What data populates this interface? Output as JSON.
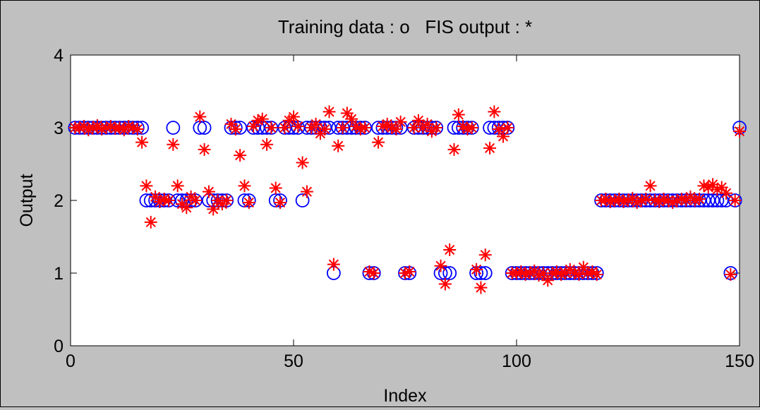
{
  "chart_data": {
    "type": "scatter",
    "title": "Training data : o   FIS output : *",
    "xlabel": "Index",
    "ylabel": "Output",
    "xlim": [
      0,
      150
    ],
    "ylim": [
      0,
      4
    ],
    "xticks": [
      "0",
      "50",
      "100",
      "150"
    ],
    "yticks": [
      "0",
      "1",
      "2",
      "3",
      "4"
    ],
    "grid": false,
    "colors": {
      "training": "#0000ff",
      "fis": "#ff0000",
      "background": "#c0c0c0",
      "plot": "#ffffff"
    },
    "series": [
      {
        "marker": "o",
        "points": [
          [
            1,
            3
          ],
          [
            2,
            3
          ],
          [
            3,
            3
          ],
          [
            4,
            3
          ],
          [
            5,
            3
          ],
          [
            6,
            3
          ],
          [
            7,
            3
          ],
          [
            8,
            3
          ],
          [
            9,
            3
          ],
          [
            10,
            3
          ],
          [
            11,
            3
          ],
          [
            12,
            3
          ],
          [
            13,
            3
          ],
          [
            14,
            3
          ],
          [
            15,
            3
          ],
          [
            16,
            3
          ],
          [
            17,
            2
          ],
          [
            18,
            2
          ],
          [
            19,
            2
          ],
          [
            20,
            2
          ],
          [
            21,
            2
          ],
          [
            22,
            2
          ],
          [
            23,
            3
          ],
          [
            24,
            2
          ],
          [
            25,
            2
          ],
          [
            26,
            2
          ],
          [
            27,
            2
          ],
          [
            28,
            2
          ],
          [
            29,
            3
          ],
          [
            30,
            3
          ],
          [
            31,
            2
          ],
          [
            32,
            2
          ],
          [
            33,
            2
          ],
          [
            34,
            2
          ],
          [
            35,
            2
          ],
          [
            36,
            3
          ],
          [
            37,
            3
          ],
          [
            38,
            3
          ],
          [
            39,
            2
          ],
          [
            40,
            2
          ],
          [
            41,
            3
          ],
          [
            42,
            3
          ],
          [
            43,
            3
          ],
          [
            44,
            3
          ],
          [
            45,
            3
          ],
          [
            46,
            2
          ],
          [
            47,
            2
          ],
          [
            48,
            3
          ],
          [
            49,
            3
          ],
          [
            50,
            3
          ],
          [
            51,
            3
          ],
          [
            52,
            2
          ],
          [
            53,
            3
          ],
          [
            54,
            3
          ],
          [
            55,
            3
          ],
          [
            56,
            3
          ],
          [
            57,
            3
          ],
          [
            58,
            3
          ],
          [
            59,
            1
          ],
          [
            60,
            3
          ],
          [
            61,
            3
          ],
          [
            62,
            3
          ],
          [
            63,
            3
          ],
          [
            64,
            3
          ],
          [
            65,
            3
          ],
          [
            66,
            3
          ],
          [
            67,
            1
          ],
          [
            68,
            1
          ],
          [
            69,
            3
          ],
          [
            70,
            3
          ],
          [
            71,
            3
          ],
          [
            72,
            3
          ],
          [
            73,
            3
          ],
          [
            74,
            3
          ],
          [
            75,
            1
          ],
          [
            76,
            1
          ],
          [
            77,
            3
          ],
          [
            78,
            3
          ],
          [
            79,
            3
          ],
          [
            80,
            3
          ],
          [
            81,
            3
          ],
          [
            82,
            3
          ],
          [
            83,
            1
          ],
          [
            84,
            1
          ],
          [
            85,
            1
          ],
          [
            86,
            3
          ],
          [
            87,
            3
          ],
          [
            88,
            3
          ],
          [
            89,
            3
          ],
          [
            90,
            3
          ],
          [
            91,
            1
          ],
          [
            92,
            1
          ],
          [
            93,
            1
          ],
          [
            94,
            3
          ],
          [
            95,
            3
          ],
          [
            96,
            3
          ],
          [
            97,
            3
          ],
          [
            98,
            3
          ],
          [
            99,
            1
          ],
          [
            100,
            1
          ],
          [
            101,
            1
          ],
          [
            102,
            1
          ],
          [
            103,
            1
          ],
          [
            104,
            1
          ],
          [
            105,
            1
          ],
          [
            106,
            1
          ],
          [
            107,
            1
          ],
          [
            108,
            1
          ],
          [
            109,
            1
          ],
          [
            110,
            1
          ],
          [
            111,
            1
          ],
          [
            112,
            1
          ],
          [
            113,
            1
          ],
          [
            114,
            1
          ],
          [
            115,
            1
          ],
          [
            116,
            1
          ],
          [
            117,
            1
          ],
          [
            118,
            1
          ],
          [
            119,
            2
          ],
          [
            120,
            2
          ],
          [
            121,
            2
          ],
          [
            122,
            2
          ],
          [
            123,
            2
          ],
          [
            124,
            2
          ],
          [
            125,
            2
          ],
          [
            126,
            2
          ],
          [
            127,
            2
          ],
          [
            128,
            2
          ],
          [
            129,
            2
          ],
          [
            130,
            2
          ],
          [
            131,
            2
          ],
          [
            132,
            2
          ],
          [
            133,
            2
          ],
          [
            134,
            2
          ],
          [
            135,
            2
          ],
          [
            136,
            2
          ],
          [
            137,
            2
          ],
          [
            138,
            2
          ],
          [
            139,
            2
          ],
          [
            140,
            2
          ],
          [
            141,
            2
          ],
          [
            142,
            2
          ],
          [
            143,
            2
          ],
          [
            144,
            2
          ],
          [
            145,
            2
          ],
          [
            146,
            2
          ],
          [
            147,
            2
          ],
          [
            148,
            1
          ],
          [
            149,
            2
          ],
          [
            150,
            3
          ]
        ]
      },
      {
        "marker": "*",
        "points": [
          [
            1,
            3.0
          ],
          [
            2,
            3.0
          ],
          [
            3,
            3.02
          ],
          [
            4,
            2.97
          ],
          [
            5,
            3.0
          ],
          [
            6,
            3.03
          ],
          [
            7,
            2.98
          ],
          [
            8,
            3.0
          ],
          [
            9,
            3.02
          ],
          [
            10,
            2.99
          ],
          [
            11,
            3.0
          ],
          [
            12,
            2.97
          ],
          [
            13,
            3.02
          ],
          [
            14,
            3.0
          ],
          [
            15,
            2.98
          ],
          [
            16,
            2.8
          ],
          [
            17,
            2.2
          ],
          [
            18,
            1.7
          ],
          [
            19,
            2.05
          ],
          [
            20,
            1.98
          ],
          [
            21,
            2.02
          ],
          [
            22,
            2.0
          ],
          [
            23,
            2.77
          ],
          [
            24,
            2.2
          ],
          [
            25,
            1.95
          ],
          [
            26,
            1.9
          ],
          [
            27,
            2.05
          ],
          [
            28,
            2.0
          ],
          [
            29,
            3.15
          ],
          [
            30,
            2.7
          ],
          [
            31,
            2.12
          ],
          [
            32,
            1.88
          ],
          [
            33,
            2.0
          ],
          [
            34,
            1.95
          ],
          [
            35,
            2.0
          ],
          [
            36,
            3.05
          ],
          [
            37,
            2.98
          ],
          [
            38,
            2.62
          ],
          [
            39,
            2.2
          ],
          [
            40,
            1.97
          ],
          [
            41,
            3.02
          ],
          [
            42,
            3.1
          ],
          [
            43,
            3.12
          ],
          [
            44,
            2.77
          ],
          [
            45,
            3.0
          ],
          [
            46,
            2.17
          ],
          [
            47,
            1.97
          ],
          [
            48,
            3.0
          ],
          [
            49,
            3.1
          ],
          [
            50,
            3.15
          ],
          [
            51,
            3.02
          ],
          [
            52,
            2.52
          ],
          [
            53,
            2.12
          ],
          [
            54,
            3.0
          ],
          [
            55,
            3.05
          ],
          [
            56,
            2.92
          ],
          [
            57,
            2.98
          ],
          [
            58,
            3.22
          ],
          [
            59,
            1.12
          ],
          [
            60,
            2.75
          ],
          [
            61,
            3.0
          ],
          [
            62,
            3.2
          ],
          [
            63,
            3.12
          ],
          [
            64,
            3.02
          ],
          [
            65,
            2.98
          ],
          [
            66,
            3.0
          ],
          [
            67,
            1.02
          ],
          [
            68,
            1.0
          ],
          [
            69,
            2.8
          ],
          [
            70,
            3.02
          ],
          [
            71,
            3.05
          ],
          [
            72,
            3.0
          ],
          [
            73,
            2.98
          ],
          [
            74,
            3.08
          ],
          [
            75,
            1.0
          ],
          [
            76,
            1.02
          ],
          [
            77,
            3.0
          ],
          [
            78,
            3.1
          ],
          [
            79,
            3.0
          ],
          [
            80,
            3.05
          ],
          [
            81,
            2.95
          ],
          [
            82,
            3.0
          ],
          [
            83,
            1.1
          ],
          [
            84,
            0.85
          ],
          [
            85,
            1.32
          ],
          [
            86,
            2.7
          ],
          [
            87,
            3.18
          ],
          [
            88,
            3.02
          ],
          [
            89,
            2.98
          ],
          [
            90,
            3.0
          ],
          [
            91,
            1.05
          ],
          [
            92,
            0.8
          ],
          [
            93,
            1.25
          ],
          [
            94,
            2.72
          ],
          [
            95,
            3.22
          ],
          [
            96,
            2.98
          ],
          [
            97,
            2.88
          ],
          [
            98,
            3.0
          ],
          [
            99,
            1.0
          ],
          [
            100,
            1.0
          ],
          [
            101,
            1.02
          ],
          [
            102,
            0.98
          ],
          [
            103,
            1.0
          ],
          [
            104,
            1.03
          ],
          [
            105,
            0.97
          ],
          [
            106,
            1.0
          ],
          [
            107,
            0.9
          ],
          [
            108,
            1.0
          ],
          [
            109,
            1.02
          ],
          [
            110,
            0.98
          ],
          [
            111,
            1.0
          ],
          [
            112,
            1.05
          ],
          [
            113,
            1.0
          ],
          [
            114,
            0.98
          ],
          [
            115,
            1.08
          ],
          [
            116,
            1.0
          ],
          [
            117,
            1.02
          ],
          [
            118,
            0.98
          ],
          [
            119,
            2.0
          ],
          [
            120,
            2.02
          ],
          [
            121,
            1.98
          ],
          [
            122,
            2.0
          ],
          [
            123,
            2.02
          ],
          [
            124,
            1.98
          ],
          [
            125,
            2.0
          ],
          [
            126,
            2.03
          ],
          [
            127,
            1.97
          ],
          [
            128,
            2.0
          ],
          [
            129,
            2.02
          ],
          [
            130,
            2.2
          ],
          [
            131,
            2.0
          ],
          [
            132,
            1.98
          ],
          [
            133,
            2.02
          ],
          [
            134,
            2.0
          ],
          [
            135,
            1.97
          ],
          [
            136,
            2.0
          ],
          [
            137,
            2.02
          ],
          [
            138,
            2.0
          ],
          [
            139,
            2.05
          ],
          [
            140,
            2.0
          ],
          [
            141,
            2.02
          ],
          [
            142,
            2.2
          ],
          [
            143,
            2.18
          ],
          [
            144,
            2.22
          ],
          [
            145,
            2.15
          ],
          [
            146,
            2.18
          ],
          [
            147,
            2.1
          ],
          [
            148,
            0.98
          ],
          [
            149,
            2.0
          ],
          [
            150,
            2.95
          ]
        ]
      }
    ]
  }
}
